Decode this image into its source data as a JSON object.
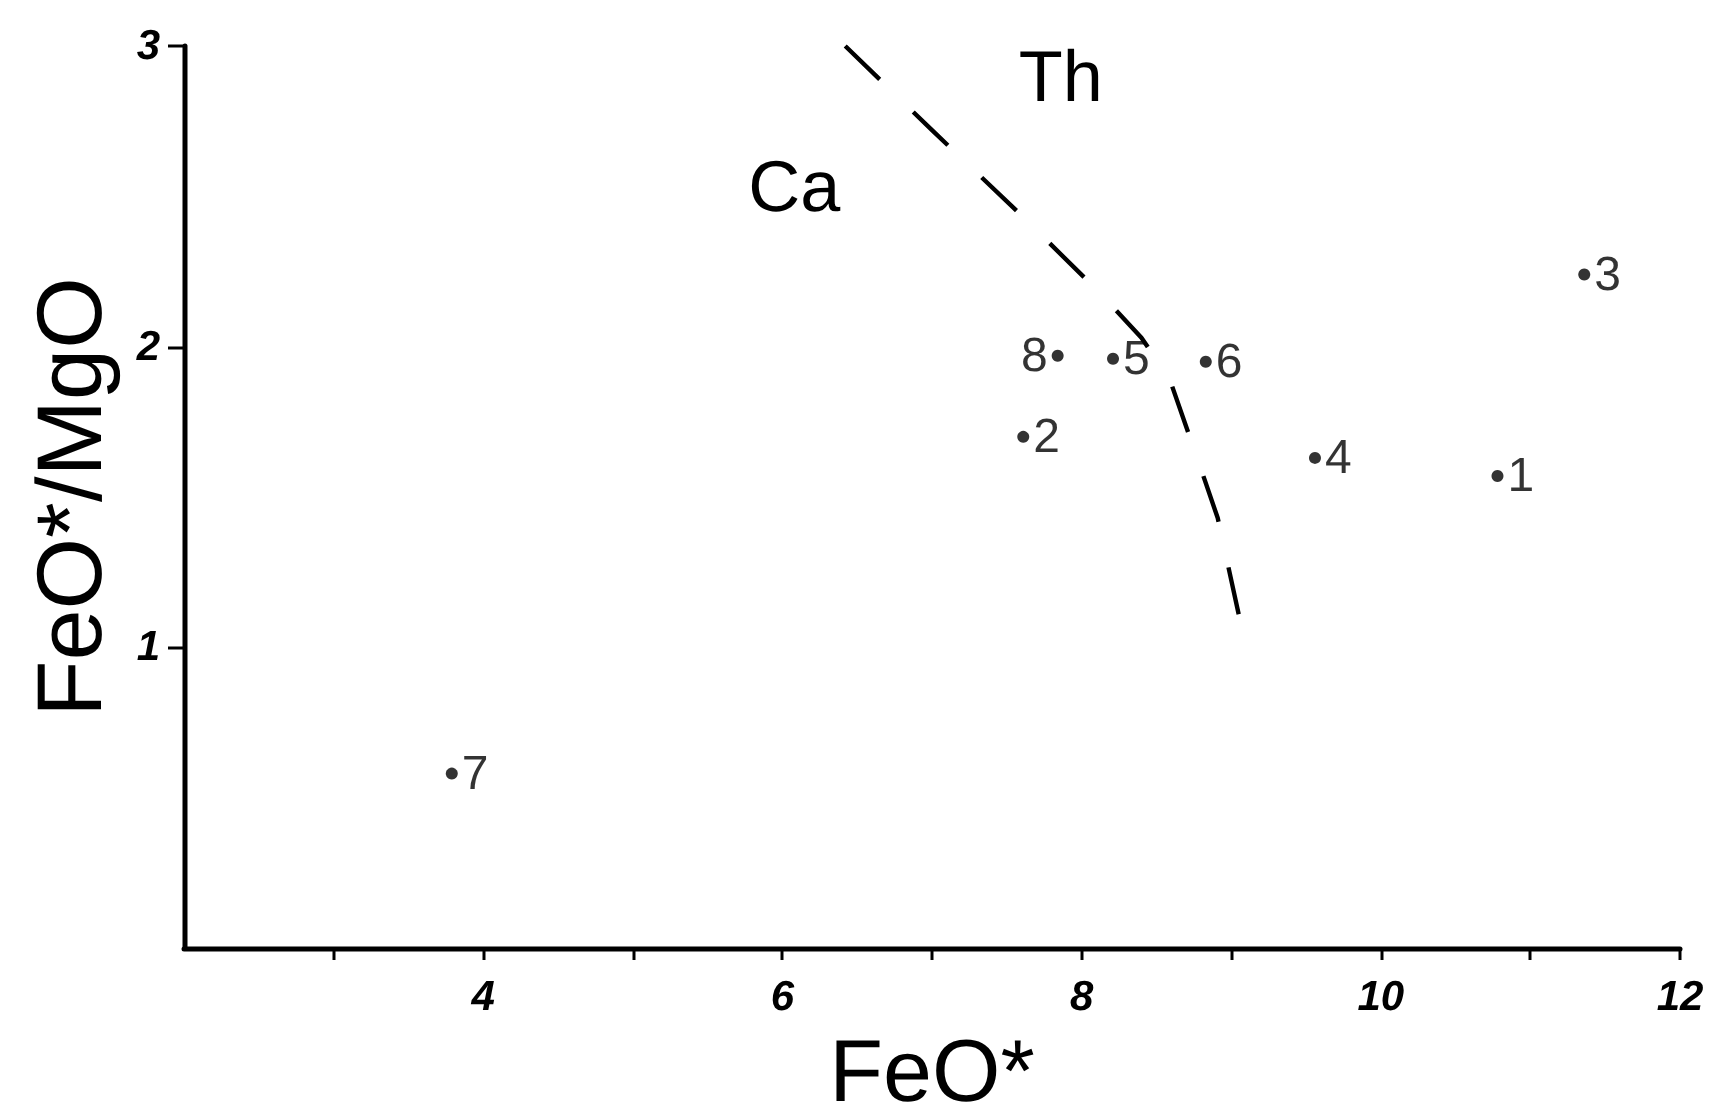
{
  "chart_data": {
    "type": "scatter",
    "xlabel": "FeO*",
    "ylabel": "FeO*/MgO",
    "xlim": [
      2,
      12
    ],
    "xticks": [
      {
        "value": 3,
        "label": null
      },
      4,
      {
        "value": 5,
        "label": null
      },
      6,
      {
        "value": 7,
        "label": null
      },
      8,
      {
        "value": 9,
        "label": null
      },
      10,
      {
        "value": 11,
        "label": null
      },
      12
    ],
    "ylim": [
      0,
      3
    ],
    "yticks": [
      1,
      2,
      3
    ],
    "annotations": [
      "Th",
      "Ca"
    ],
    "series": [
      {
        "name": "1",
        "color": "#000000",
        "marker": "circle",
        "x": [
          10.78
        ],
        "values": [
          1.57
        ]
      },
      {
        "name": "2",
        "color": "#000000",
        "marker": "circle",
        "x": [
          7.61
        ],
        "values": [
          1.7
        ]
      },
      {
        "name": "3",
        "color": "#000000",
        "marker": "circle",
        "x": [
          11.36
        ],
        "values": [
          2.24
        ]
      },
      {
        "name": "4",
        "color": "#000000",
        "marker": "circle",
        "x": [
          9.56
        ],
        "values": [
          1.63
        ]
      },
      {
        "name": "5",
        "color": "#000000",
        "marker": "circle",
        "x": [
          8.21
        ],
        "values": [
          1.96
        ]
      },
      {
        "name": "6",
        "color": "#000000",
        "marker": "circle",
        "x": [
          8.83
        ],
        "values": [
          1.95
        ]
      },
      {
        "name": "7",
        "color": "#000000",
        "marker": "circle",
        "x": [
          3.79
        ],
        "values": [
          0.58
        ]
      },
      {
        "name": "8",
        "color": "#000000",
        "marker": "circle",
        "x": [
          7.84
        ],
        "values": [
          1.97
        ]
      },
      {
        "type": "line",
        "color": "#000000",
        "marker": "none",
        "line_style": "dashed",
        "x": [
          6.42,
          7.0,
          7.57,
          8.1,
          8.4,
          8.59,
          8.8,
          8.91,
          9.05
        ],
        "values": [
          3.0,
          2.72,
          2.45,
          2.19,
          2.03,
          1.89,
          1.59,
          1.43,
          1.11
        ]
      }
    ]
  }
}
